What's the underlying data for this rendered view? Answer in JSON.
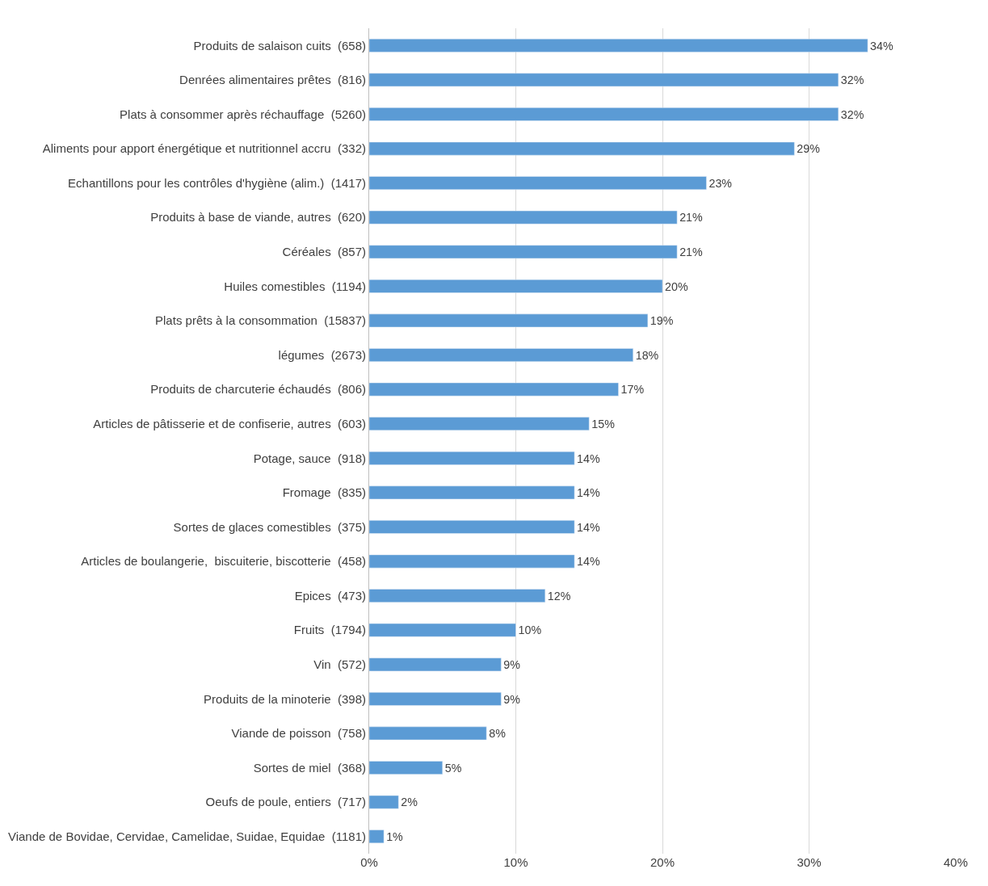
{
  "chart_data": {
    "type": "bar",
    "orientation": "horizontal",
    "categories": [
      "Produits de salaison cuits  (658)",
      "Denrées alimentaires prêtes  (816)",
      "Plats à consommer après réchauffage  (5260)",
      "Aliments pour apport énergétique et nutritionnel accru  (332)",
      "Echantillons pour les contrôles d'hygiène (alim.)  (1417)",
      "Produits à base de viande, autres  (620)",
      "Céréales  (857)",
      "Huiles comestibles  (1194)",
      "Plats prêts à la consommation  (15837)",
      "légumes  (2673)",
      "Produits de charcuterie échaudés  (806)",
      "Articles de pâtisserie et de confiserie, autres  (603)",
      "Potage, sauce  (918)",
      "Fromage  (835)",
      "Sortes de glaces comestibles  (375)",
      "Articles de boulangerie,  biscuiterie, biscotterie  (458)",
      "Epices  (473)",
      "Fruits  (1794)",
      "Vin  (572)",
      "Produits de la minoterie  (398)",
      "Viande de poisson  (758)",
      "Sortes de miel  (368)",
      "Oeufs de poule, entiers  (717)",
      "Viande de Bovidae, Cervidae, Camelidae, Suidae, Equidae  (1181)"
    ],
    "values": [
      34,
      32,
      32,
      29,
      23,
      21,
      21,
      20,
      19,
      18,
      17,
      15,
      14,
      14,
      14,
      14,
      12,
      10,
      9,
      9,
      8,
      5,
      2,
      1
    ],
    "value_labels": [
      "34%",
      "32%",
      "32%",
      "29%",
      "23%",
      "21%",
      "21%",
      "20%",
      "19%",
      "18%",
      "17%",
      "15%",
      "14%",
      "14%",
      "14%",
      "14%",
      "12%",
      "10%",
      "9%",
      "9%",
      "8%",
      "5%",
      "2%",
      "1%"
    ],
    "color": "#5b9bd5",
    "xlim": [
      0,
      40
    ],
    "xticks": [
      {
        "value": 0,
        "label": "0%"
      },
      {
        "value": 10,
        "label": "10%"
      },
      {
        "value": 20,
        "label": "20%"
      },
      {
        "value": 30,
        "label": "30%"
      },
      {
        "value": 40,
        "label": "40%"
      }
    ],
    "grid": "x"
  }
}
